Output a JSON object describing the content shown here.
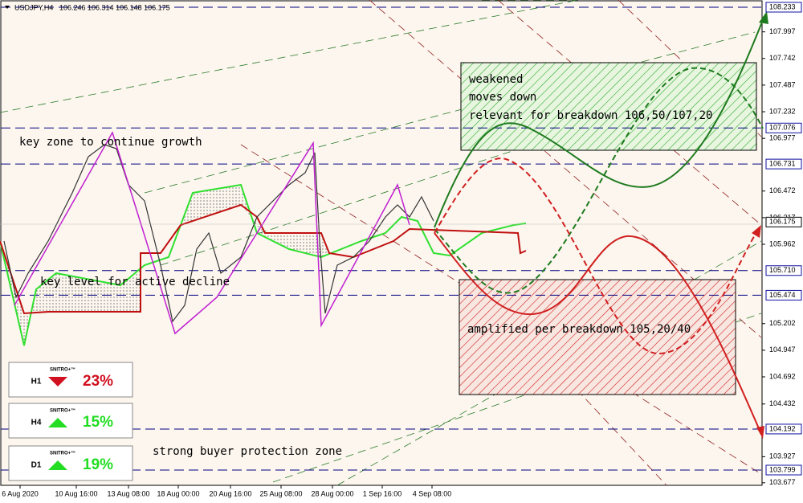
{
  "header": {
    "symbol": "USDJPY,H4",
    "ohlc": "106.246 106.314 106.148 106.175"
  },
  "price_axis": [
    "107.997",
    "107.742",
    "107.487",
    "107.232",
    "106.977",
    "106.472",
    "106.217",
    "105.962",
    "105.202",
    "104.947",
    "104.692",
    "104.432",
    "103.927",
    "103.677"
  ],
  "levels": [
    "108.233",
    "107.076",
    "106.731",
    "106.175",
    "105.710",
    "105.474",
    "104.192",
    "103.799"
  ],
  "time_axis": [
    "6 Aug 2020",
    "10 Aug 16:00",
    "13 Aug 08:00",
    "18 Aug 00:00",
    "20 Aug 16:00",
    "25 Aug 08:00",
    "28 Aug 00:00",
    "1 Sep 16:00",
    "4 Sep 08:00"
  ],
  "annotations": {
    "growth_zone": "key zone to continue growth",
    "decline_level": "key level for active decline",
    "buyer_zone": "strong buyer protection zone"
  },
  "green_zone": {
    "lines": [
      "weakened",
      "moves down",
      "relevant for breakdown 106,50/107,20"
    ]
  },
  "red_zone": {
    "text": "amplified per breakdown 105,20/40"
  },
  "indicators": [
    {
      "timeframe": "H1",
      "brand": "SNITRO+™",
      "value": "23%",
      "direction": "down"
    },
    {
      "timeframe": "H4",
      "brand": "SNITRO+™",
      "value": "15%",
      "direction": "up"
    },
    {
      "timeframe": "D1",
      "brand": "SNITRO+™",
      "value": "19%",
      "direction": "up"
    }
  ]
}
